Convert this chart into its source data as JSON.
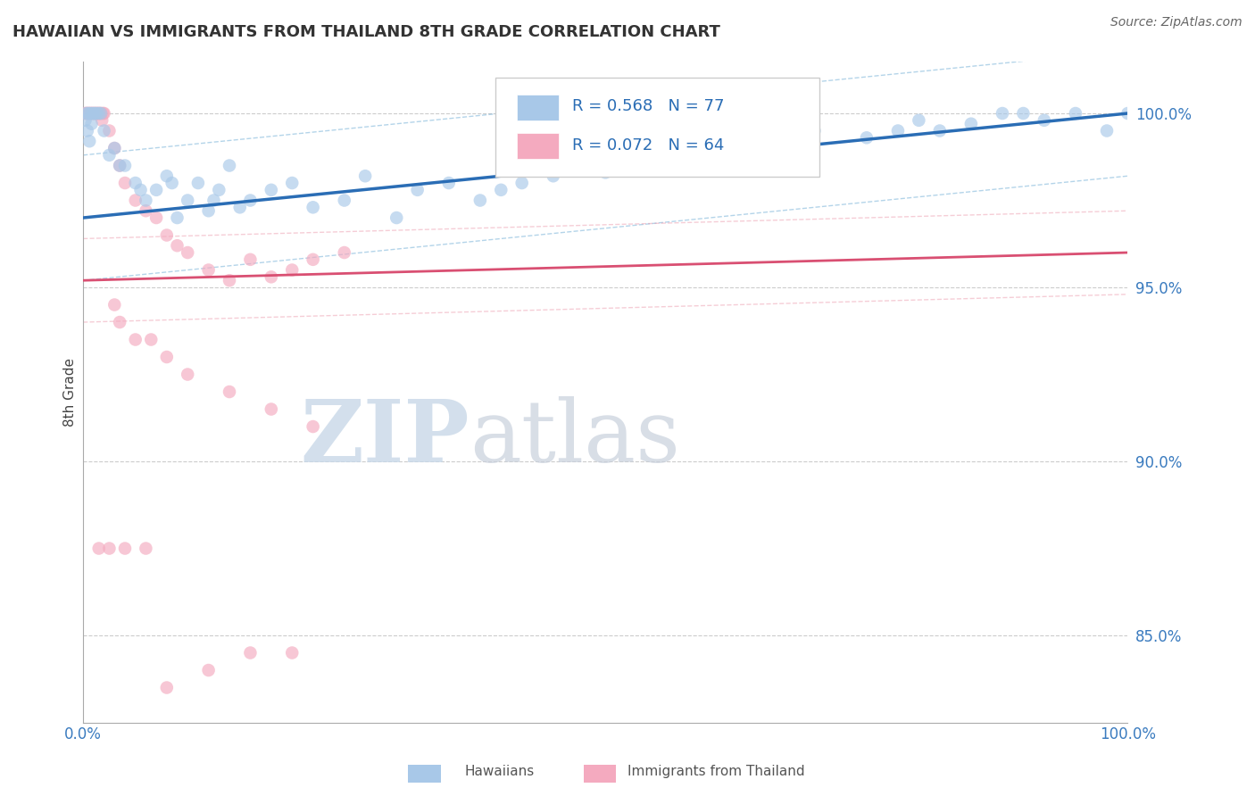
{
  "title": "HAWAIIAN VS IMMIGRANTS FROM THAILAND 8TH GRADE CORRELATION CHART",
  "source": "Source: ZipAtlas.com",
  "ylabel": "8th Grade",
  "ylim": [
    82.5,
    101.5
  ],
  "xlim": [
    0,
    100
  ],
  "r_hawaiian": 0.568,
  "n_hawaiian": 77,
  "r_thailand": 0.072,
  "n_thailand": 64,
  "hawaiian_color": "#a8c8e8",
  "thailand_color": "#f4aabf",
  "hawaiian_line_color": "#2a6db5",
  "thailand_line_color": "#d94f72",
  "hawaiian_conf_color": "#6aaad4",
  "thailand_conf_color": "#e8849a",
  "ytick_positions": [
    85,
    90,
    95,
    100
  ],
  "ytick_labels": [
    "85.0%",
    "90.0%",
    "95.0%",
    "100.0%"
  ]
}
